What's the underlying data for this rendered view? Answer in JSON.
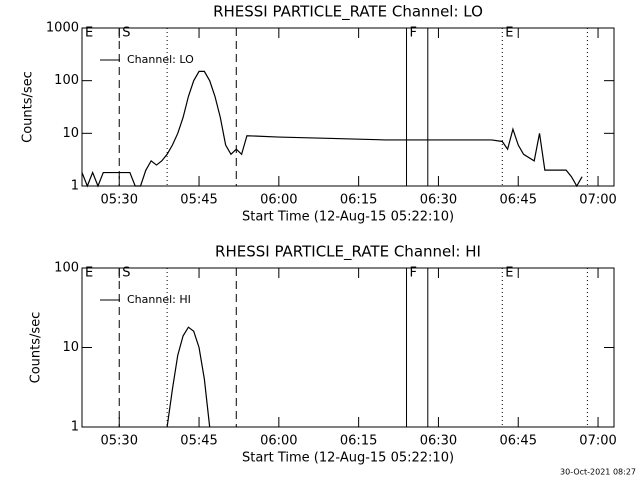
{
  "timestamp": "30-Oct-2021 08:27",
  "chart_data": [
    {
      "type": "line",
      "title": "RHESSI PARTICLE_RATE Channel: LO",
      "ylabel": "Counts/sec",
      "xlabel": "Start Time (12-Aug-15 05:22:10)",
      "log_y": true,
      "xlim": [
        "05:23",
        "07:03"
      ],
      "xticks": [
        "05:30",
        "05:45",
        "06:00",
        "06:15",
        "06:30",
        "06:45",
        "07:00"
      ],
      "ylim": [
        1,
        1000
      ],
      "yticks": [
        1,
        10,
        100,
        1000
      ],
      "x": [
        "05:23",
        "05:24",
        "05:25",
        "05:26",
        "05:27",
        "05:28",
        "05:29",
        "05:30",
        "05:31",
        "05:32",
        "05:33",
        "05:34",
        "05:35",
        "05:36",
        "05:37",
        "05:38",
        "05:39",
        "05:40",
        "05:41",
        "05:42",
        "05:43",
        "05:44",
        "05:45",
        "05:46",
        "05:47",
        "05:48",
        "05:49",
        "05:50",
        "05:51",
        "05:52",
        "05:53",
        "05:54",
        "06:00",
        "06:10",
        "06:20",
        "06:30",
        "06:40",
        "06:42",
        "06:43",
        "06:44",
        "06:45",
        "06:46",
        "06:48",
        "06:49",
        "06:50",
        "06:52",
        "06:54",
        "06:55",
        "06:56",
        "06:57"
      ],
      "series": [
        {
          "name": "Channel: LO",
          "color": "#000000",
          "values": [
            1.8,
            1,
            1.8,
            1,
            1.8,
            1.8,
            1.8,
            1.8,
            1.8,
            1.8,
            1,
            1,
            2,
            3,
            2.5,
            3,
            4,
            6,
            10,
            20,
            50,
            100,
            150,
            150,
            100,
            50,
            20,
            6,
            4,
            5,
            4,
            9,
            8.5,
            8,
            7.5,
            7.5,
            7.5,
            7,
            5,
            12,
            6,
            4,
            3,
            10,
            2,
            2,
            2,
            1.5,
            1,
            1.5
          ]
        }
      ],
      "markers": [
        {
          "x": "05:23",
          "label": "E"
        },
        {
          "x": "05:30",
          "style": "dashed",
          "label": "S"
        },
        {
          "x": "05:39",
          "style": "dotted"
        },
        {
          "x": "05:52",
          "style": "dashed"
        },
        {
          "x": "06:24",
          "style": "solid",
          "label": "F"
        },
        {
          "x": "06:28",
          "style": "solid"
        },
        {
          "x": "06:42",
          "style": "dotted",
          "label": "E"
        },
        {
          "x": "06:58",
          "style": "dotted"
        }
      ]
    },
    {
      "type": "line",
      "title": "RHESSI PARTICLE_RATE Channel: HI",
      "ylabel": "Counts/sec",
      "xlabel": "Start Time (12-Aug-15 05:22:10)",
      "log_y": true,
      "xlim": [
        "05:23",
        "07:03"
      ],
      "xticks": [
        "05:30",
        "05:45",
        "06:00",
        "06:15",
        "06:30",
        "06:45",
        "07:00"
      ],
      "ylim": [
        1,
        100
      ],
      "yticks": [
        1,
        10,
        100
      ],
      "x": [
        "05:39",
        "05:40",
        "05:41",
        "05:42",
        "05:43",
        "05:44",
        "05:45",
        "05:46",
        "05:47"
      ],
      "series": [
        {
          "name": "Channel: HI",
          "color": "#000000",
          "values": [
            1,
            3,
            8,
            14,
            18,
            16,
            10,
            4,
            1
          ]
        }
      ],
      "markers": [
        {
          "x": "05:23",
          "label": "E"
        },
        {
          "x": "05:30",
          "style": "dashed",
          "label": "S"
        },
        {
          "x": "05:39",
          "style": "dotted"
        },
        {
          "x": "05:52",
          "style": "dashed"
        },
        {
          "x": "06:24",
          "style": "solid",
          "label": "F"
        },
        {
          "x": "06:28",
          "style": "solid"
        },
        {
          "x": "06:42",
          "style": "dotted",
          "label": "E"
        },
        {
          "x": "06:58",
          "style": "dotted"
        }
      ]
    }
  ]
}
